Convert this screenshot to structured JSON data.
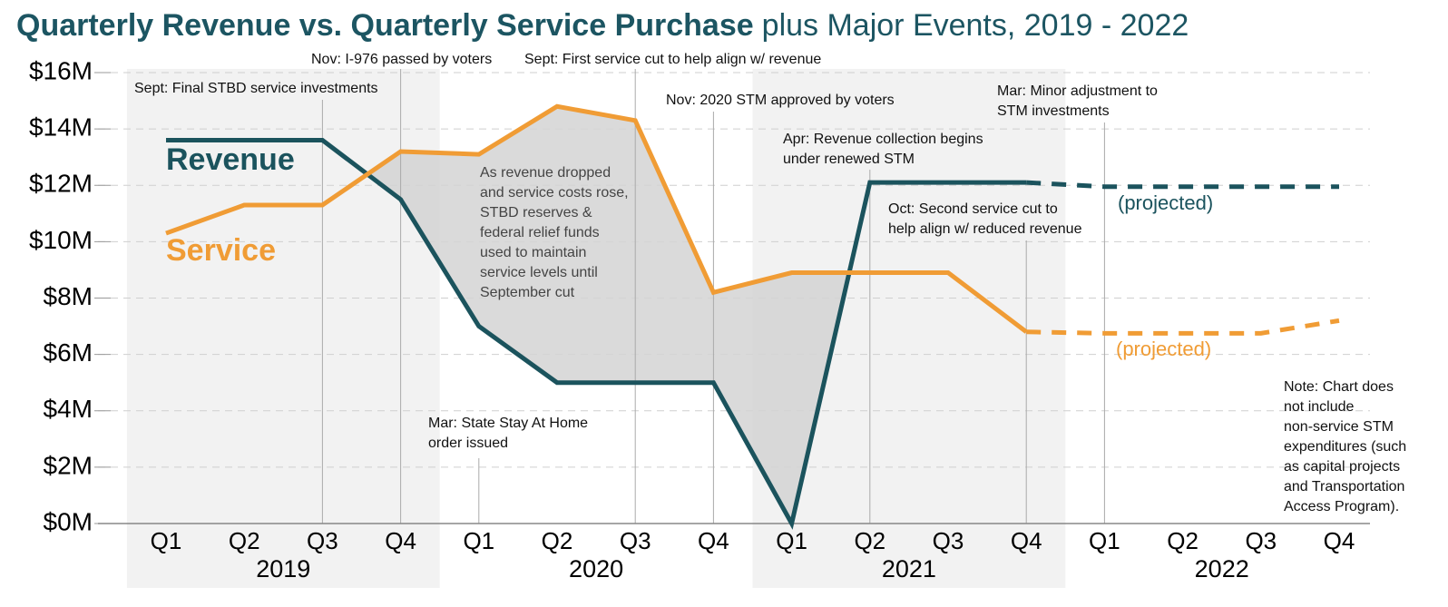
{
  "chart_data": {
    "type": "line",
    "title": "Quarterly Revenue vs. Quarterly Service Purchase",
    "subtitle": "plus Major Events, 2019 - 2022",
    "categories": [
      "Q1",
      "Q2",
      "Q3",
      "Q4",
      "Q1",
      "Q2",
      "Q3",
      "Q4",
      "Q1",
      "Q2",
      "Q3",
      "Q4",
      "Q1",
      "Q2",
      "Q3",
      "Q4"
    ],
    "years": [
      "2019",
      "2020",
      "2021",
      "2022"
    ],
    "ylim": [
      0,
      16
    ],
    "yticks": [
      {
        "value": 0,
        "label": "$0M"
      },
      {
        "value": 2,
        "label": "$2M"
      },
      {
        "value": 4,
        "label": "$4M"
      },
      {
        "value": 6,
        "label": "$6M"
      },
      {
        "value": 8,
        "label": "$8M"
      },
      {
        "value": 10,
        "label": "$10M"
      },
      {
        "value": 12,
        "label": "$12M"
      },
      {
        "value": 14,
        "label": "$14M"
      },
      {
        "value": 16,
        "label": "$16M"
      }
    ],
    "grid": true,
    "series": [
      {
        "name": "Revenue",
        "color": "#1b535d",
        "dashed": false,
        "values": [
          13.6,
          13.6,
          13.6,
          11.5,
          7.0,
          5.0,
          5.0,
          5.0,
          0,
          12.1,
          12.1,
          12.1,
          null,
          null,
          null,
          null
        ]
      },
      {
        "name": "Service",
        "color": "#f09c35",
        "dashed": false,
        "values": [
          10.3,
          11.3,
          11.3,
          13.2,
          13.1,
          14.8,
          14.3,
          8.2,
          8.9,
          8.9,
          8.9,
          6.8,
          null,
          null,
          null,
          null
        ]
      },
      {
        "name": "(projected)",
        "color": "#1b535d",
        "dashed": true,
        "values": [
          null,
          null,
          null,
          null,
          null,
          null,
          null,
          null,
          null,
          null,
          null,
          12.1,
          11.95,
          11.95,
          11.95,
          11.95
        ]
      },
      {
        "name": "(projected)",
        "color": "#f09c35",
        "dashed": true,
        "values": [
          null,
          null,
          null,
          null,
          null,
          null,
          null,
          null,
          null,
          null,
          null,
          6.8,
          6.75,
          6.75,
          6.75,
          7.2
        ]
      }
    ],
    "annotations": [
      [
        "Sept: Final STBD service investments"
      ],
      [
        "Nov: I-976 passed by voters"
      ],
      [
        "Mar: State Stay At Home",
        "order issued"
      ],
      [
        "Sept: First service cut to help align w/ revenue"
      ],
      [
        "Nov: 2020 STM approved by voters"
      ],
      [
        "Apr: Revenue collection begins",
        "under renewed STM"
      ],
      [
        "Oct: Second service cut to",
        "help align w/ reduced revenue"
      ],
      [
        "Mar: Minor adjustment to",
        "STM investments"
      ]
    ],
    "gap_note": [
      "As revenue dropped",
      "and service costs rose,",
      "STBD reserves &",
      "federal relief funds",
      "used to maintain",
      "service levels until",
      "September cut"
    ],
    "note": [
      "Note: Chart does",
      "not include",
      "non-service STM",
      "expenditures (such",
      "as capital projects",
      "and Transportation",
      "Access Program)."
    ]
  }
}
